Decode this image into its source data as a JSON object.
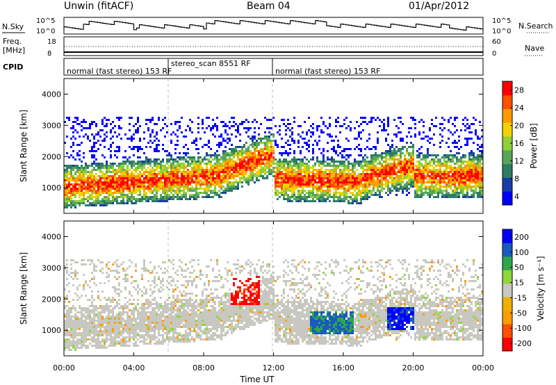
{
  "header": {
    "station": "Unwin (fitACF)",
    "beam": "Beam 04",
    "date": "01/Apr/2012"
  },
  "noise_panel": {
    "left_label": "N.Sky",
    "right_label": "N.Search",
    "left_ticks": [
      "10^5",
      "10^0"
    ],
    "right_ticks": [
      "10^5",
      "10^0"
    ]
  },
  "freq_panel": {
    "left_label_line1": "Freq.",
    "left_label_line2": "[MHz]",
    "right_label": "Nave",
    "left_ticks": [
      "18",
      "8"
    ],
    "right_ticks": [
      "60",
      "0"
    ]
  },
  "cpid_panel": {
    "label": "CPID",
    "segments": [
      {
        "text": "normal (fast stereo) 153 RF",
        "start_h": 0,
        "end_h": 6
      },
      {
        "text": "stereo_scan 8551 RF",
        "start_h": 6,
        "end_h": 12
      },
      {
        "text": "normal (fast stereo) 153 RF",
        "start_h": 12,
        "end_h": 24
      }
    ]
  },
  "chart_data": [
    {
      "type": "heatmap",
      "name": "power",
      "ylabel": "Slant Range [km]",
      "xlabel": "Time UT",
      "xlim": [
        0,
        24
      ],
      "ylim": [
        180,
        4500
      ],
      "yticks": [
        "1000",
        "2000",
        "3000",
        "4000"
      ],
      "xticks": [
        "00:00",
        "04:00",
        "08:00",
        "12:00",
        "16:00",
        "20:00",
        "00:00"
      ],
      "colorbar": {
        "label": "Power [dB]",
        "ticks": [
          "28",
          "24",
          "20",
          "16",
          "12",
          "8",
          "4"
        ],
        "range": [
          0,
          30
        ],
        "colors": [
          "#0000ff",
          "#1a3ca8",
          "#2e7c64",
          "#5aa55a",
          "#8fcf3a",
          "#f2d200",
          "#ff9c00",
          "#ff5000",
          "#ff0000"
        ]
      }
    },
    {
      "type": "heatmap",
      "name": "velocity",
      "ylabel": "Slant Range [km]",
      "xlabel": "Time UT",
      "xlim": [
        0,
        24
      ],
      "ylim": [
        180,
        4500
      ],
      "yticks": [
        "1000",
        "2000",
        "3000",
        "4000"
      ],
      "xticks": [
        "00:00",
        "04:00",
        "08:00",
        "12:00",
        "16:00",
        "20:00",
        "00:00"
      ],
      "colorbar": {
        "label": "Velocity [m s⁻¹]",
        "ticks": [
          "200",
          "100",
          "50",
          "15",
          "-15",
          "-50",
          "-100",
          "-200"
        ],
        "range": [
          -250,
          250
        ],
        "colors": [
          "#ff0000",
          "#ff5000",
          "#ff9c00",
          "#f0b000",
          "#c8c8c0",
          "#8fd63a",
          "#2fa64a",
          "#1a5abf",
          "#0000ff"
        ]
      }
    }
  ],
  "x_axis_title": "Time UT"
}
